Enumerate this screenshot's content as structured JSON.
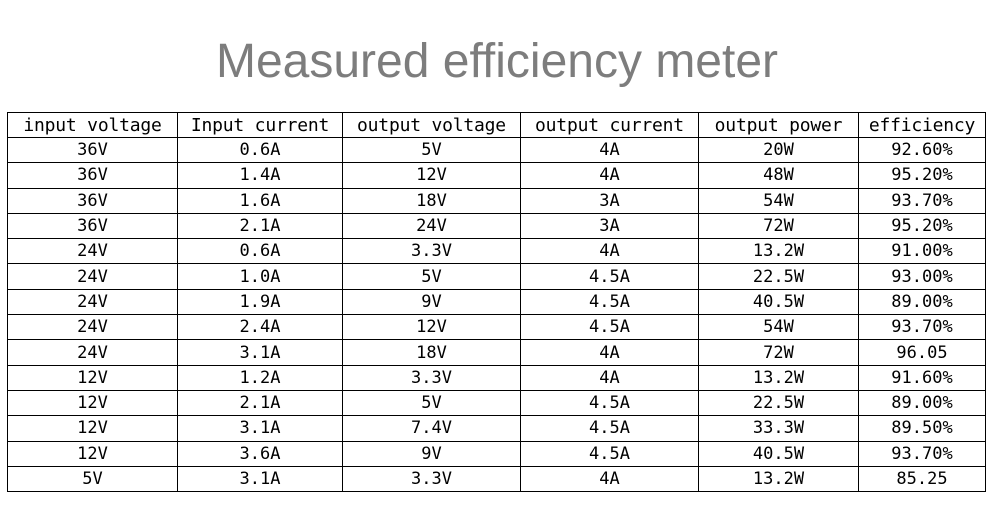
{
  "title": "Measured efficiency meter",
  "table": {
    "headers": [
      "input voltage",
      "Input current",
      "output voltage",
      "output current",
      "output power",
      "efficiency"
    ],
    "rows": [
      [
        "36V",
        "0.6A",
        "5V",
        "4A",
        "20W",
        "92.60%"
      ],
      [
        "36V",
        "1.4A",
        "12V",
        "4A",
        "48W",
        "95.20%"
      ],
      [
        "36V",
        "1.6A",
        "18V",
        "3A",
        "54W",
        "93.70%"
      ],
      [
        "36V",
        "2.1A",
        "24V",
        "3A",
        "72W",
        "95.20%"
      ],
      [
        "24V",
        "0.6A",
        "3.3V",
        "4A",
        "13.2W",
        "91.00%"
      ],
      [
        "24V",
        "1.0A",
        "5V",
        "4.5A",
        "22.5W",
        "93.00%"
      ],
      [
        "24V",
        "1.9A",
        "9V",
        "4.5A",
        "40.5W",
        "89.00%"
      ],
      [
        "24V",
        "2.4A",
        "12V",
        "4.5A",
        "54W",
        "93.70%"
      ],
      [
        "24V",
        "3.1A",
        "18V",
        "4A",
        "72W",
        "96.05"
      ],
      [
        "12V",
        "1.2A",
        "3.3V",
        "4A",
        "13.2W",
        "91.60%"
      ],
      [
        "12V",
        "2.1A",
        "5V",
        "4.5A",
        "22.5W",
        "89.00%"
      ],
      [
        "12V",
        "3.1A",
        "7.4V",
        "4.5A",
        "33.3W",
        "89.50%"
      ],
      [
        "12V",
        "3.6A",
        "9V",
        "4.5A",
        "40.5W",
        "93.70%"
      ],
      [
        "5V",
        "3.1A",
        "3.3V",
        "4A",
        "13.2W",
        "85.25"
      ]
    ]
  }
}
